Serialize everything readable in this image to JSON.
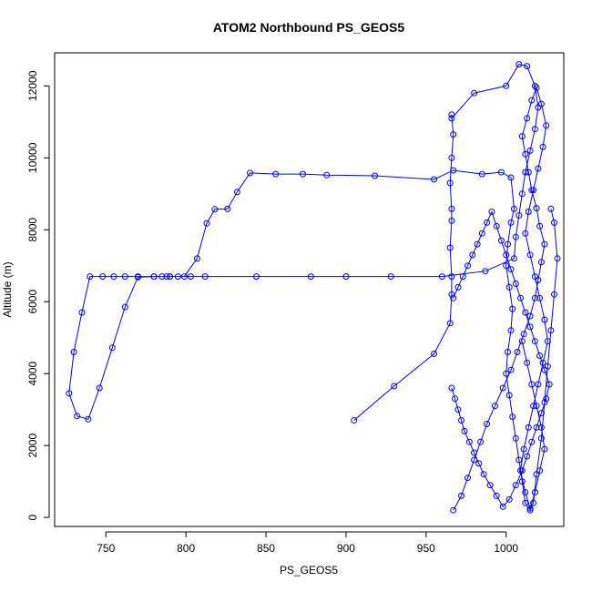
{
  "chart_data": {
    "type": "line",
    "title": "ATOM2 Northbound PS_GEOS5",
    "xlabel": "PS_GEOS5",
    "ylabel": "Altitude (m)",
    "xlim": [
      718,
      1036
    ],
    "ylim": [
      -250,
      12920
    ],
    "x_ticks": [
      750,
      800,
      850,
      900,
      950,
      1000
    ],
    "y_ticks": [
      0,
      2000,
      4000,
      6000,
      8000,
      10000,
      12000
    ],
    "grid": false,
    "legend": "none",
    "marker": "open-circle",
    "series": [
      {
        "color": "#0000ff",
        "x": [
          905,
          930,
          955,
          965,
          966,
          966,
          965,
          966,
          966,
          965,
          966,
          967,
          966,
          966,
          980,
          1000,
          1008,
          1013,
          1018,
          1020,
          1018,
          1015,
          1012,
          1010,
          1008,
          1006,
          1005,
          987,
          960,
          928,
          900,
          878,
          844,
          812,
          803,
          795,
          790,
          788,
          785,
          780,
          770,
          762,
          755,
          748,
          740,
          735,
          730,
          727,
          732,
          739,
          746,
          754,
          762,
          770,
          780,
          790,
          799,
          807,
          813,
          818,
          826,
          832,
          840,
          856,
          873,
          888,
          918,
          955,
          967,
          985,
          997,
          1003,
          1005,
          1003,
          1001,
          1000,
          1002,
          1004,
          1003,
          1001,
          1000,
          1002,
          1004,
          1006,
          1008,
          1010,
          1012,
          1015,
          1017,
          1019,
          1022,
          1024,
          1026,
          1028,
          1030,
          1032,
          1030,
          1028
        ],
        "y": [
          2700,
          3650,
          4550,
          5400,
          6200,
          6700,
          7500,
          8250,
          8580,
          9300,
          10000,
          10650,
          11200,
          11100,
          11800,
          12000,
          12600,
          12550,
          12000,
          11400,
          10800,
          10200,
          9600,
          9000,
          8400,
          7800,
          7200,
          6850,
          6700,
          6700,
          6700,
          6700,
          6700,
          6700,
          6700,
          6700,
          6700,
          6700,
          6700,
          6700,
          6700,
          6700,
          6700,
          6700,
          6700,
          5700,
          4600,
          3450,
          2820,
          2730,
          3600,
          4720,
          5850,
          6680,
          6700,
          6700,
          6700,
          7200,
          8180,
          8570,
          8580,
          9050,
          9580,
          9550,
          9550,
          9520,
          9500,
          9400,
          9650,
          9550,
          9600,
          9450,
          8580,
          8200,
          7600,
          7000,
          6400,
          5800,
          5200,
          4600,
          4000,
          3400,
          2800,
          2200,
          1600,
          1000,
          400,
          200,
          400,
          1200,
          2200,
          3200,
          4200,
          5200,
          6200,
          7200,
          8200,
          8580
        ]
      },
      {
        "color": "#0000ff",
        "x": [
          967,
          972,
          976,
          980,
          984,
          988,
          993,
          998,
          1003,
          1007,
          1011,
          1015,
          1018,
          1020,
          1022,
          1024,
          1021,
          1019,
          1016,
          1014,
          1012,
          1010,
          1013,
          1016,
          1019,
          1022,
          1025,
          1023,
          1020,
          1017,
          1014,
          1012,
          1015,
          1018,
          1021,
          1024,
          1026,
          1023,
          1020,
          1017,
          1014,
          1011,
          1009,
          1012,
          1015,
          1018,
          1021,
          1024,
          1022,
          1019,
          1016,
          1013,
          1010
        ],
        "y": [
          200,
          600,
          1100,
          1600,
          2100,
          2600,
          3100,
          3600,
          4100,
          4600,
          5100,
          5600,
          6100,
          6600,
          7100,
          7600,
          8100,
          8600,
          9100,
          9600,
          10100,
          10600,
          11100,
          11600,
          11950,
          11500,
          10900,
          10300,
          9700,
          9100,
          8500,
          7900,
          7300,
          6700,
          6100,
          5500,
          4900,
          4300,
          3700,
          3100,
          2500,
          1900,
          1300,
          700,
          250,
          700,
          1300,
          1900,
          2500,
          3100,
          3700,
          4300,
          4900
        ]
      },
      {
        "color": "#0000ff",
        "x": [
          966,
          968,
          970,
          972,
          974,
          977,
          980,
          983,
          986,
          990,
          994,
          998,
          1002,
          1006,
          1010,
          1013,
          1016,
          1019,
          1022,
          1025,
          1027,
          1024,
          1021,
          1018,
          1015,
          1012,
          1009,
          1006,
          1003,
          1000,
          997,
          994,
          991,
          988,
          985,
          982,
          979,
          976,
          973,
          970,
          967
        ],
        "y": [
          3600,
          3300,
          3000,
          2700,
          2400,
          2100,
          1800,
          1500,
          1200,
          900,
          600,
          300,
          500,
          900,
          1300,
          1700,
          2100,
          2500,
          2900,
          3300,
          3700,
          4100,
          4500,
          4900,
          5300,
          5700,
          6100,
          6500,
          6900,
          7300,
          7700,
          8100,
          8500,
          8200,
          7900,
          7600,
          7300,
          7000,
          6700,
          6400,
          6100
        ]
      }
    ]
  }
}
